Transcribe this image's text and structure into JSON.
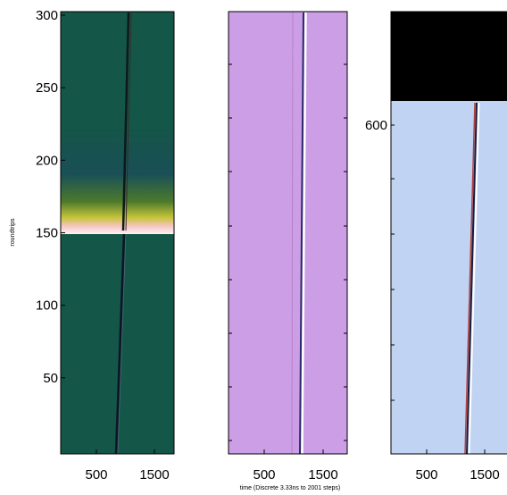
{
  "chart_data": [
    {
      "type": "heatmap",
      "panel": "left",
      "colormap": "teal background, bright band (white/pink/yellow) near roundtrip 150",
      "xticks": [
        "500",
        "1500"
      ],
      "yticks": [
        "50",
        "100",
        "150",
        "200",
        "250",
        "300"
      ],
      "ylabel": "roundtrips",
      "xlim": [
        0,
        2001
      ],
      "ylim": [
        0,
        300
      ],
      "background_color": "#145647",
      "traces": [
        {
          "x": [
            1000,
            1130,
            1210
          ],
          "y": [
            0,
            150,
            300
          ]
        }
      ],
      "band": {
        "y_start": 150,
        "y_end": 200
      }
    },
    {
      "type": "heatmap",
      "panel": "middle",
      "background_color": "#cc9ee6",
      "xticks": [
        "500",
        "1500"
      ],
      "xlim": [
        0,
        2001
      ],
      "traces": [
        {
          "x": [
            1180,
            1210
          ],
          "y": [
            0,
            300
          ]
        }
      ]
    },
    {
      "type": "heatmap",
      "panel": "right",
      "background_color": "#c0d3f3",
      "top_block_color": "#000000",
      "xticks": [
        "500",
        "1500"
      ],
      "yticks": [
        "600"
      ],
      "xlim": [
        0,
        2001
      ],
      "traces": [
        {
          "x": [
            1150,
            1350
          ],
          "y": [
            0,
            300
          ]
        }
      ]
    }
  ],
  "xlabel": "time (Discrete 3.33ns to 2001 steps)",
  "ylabel": "roundtrips"
}
